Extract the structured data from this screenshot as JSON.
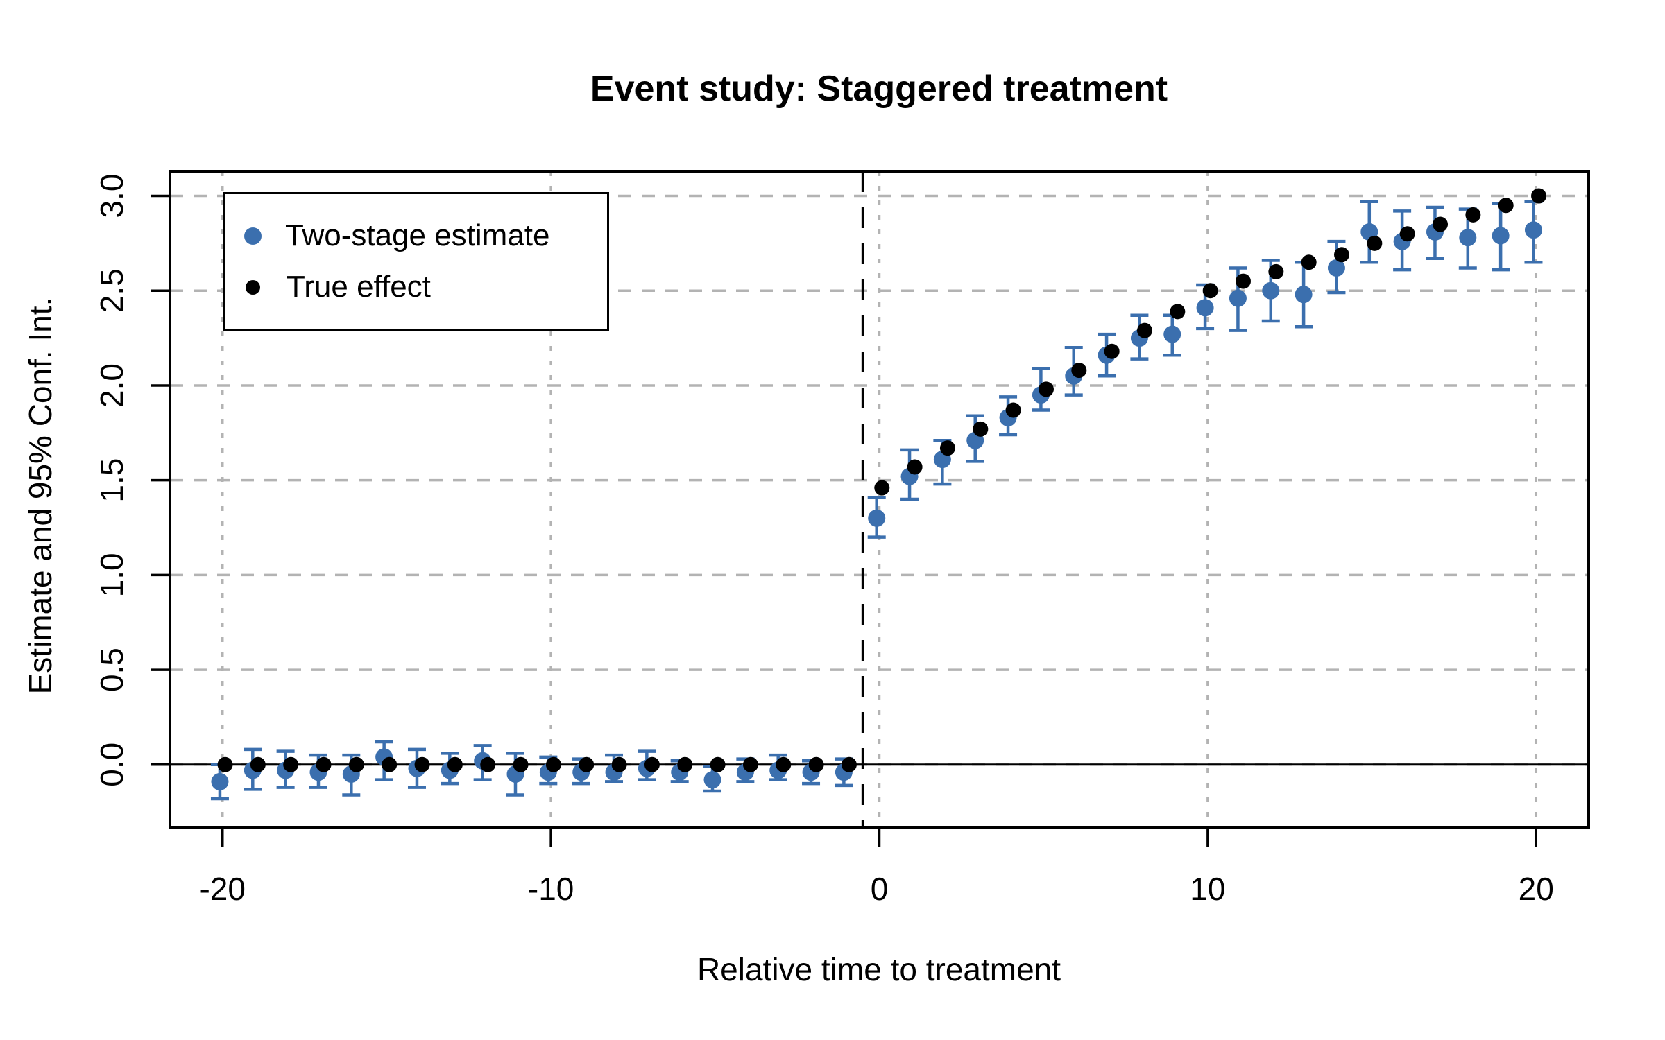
{
  "title": "Event study: Staggered treatment",
  "colors": {
    "two_stage": "#3B6FAE",
    "true_effect": "#000000",
    "grid": "#B3B3B3",
    "axis": "#000000",
    "background": "#FFFFFF"
  },
  "legend": {
    "items": [
      {
        "label": "Two-stage estimate",
        "color": "#3B6FAE",
        "marker": "filled-circle"
      },
      {
        "label": "True effect",
        "color": "#000000",
        "marker": "filled-circle"
      }
    ],
    "position": "top-left"
  },
  "chart_data": {
    "type": "scatter",
    "title": "Event study: Staggered treatment",
    "xlabel": "Relative time to treatment",
    "ylabel": "Estimate and 95% Conf. Int.",
    "xlim": [
      -21.6,
      21.6
    ],
    "ylim": [
      -0.33,
      3.13
    ],
    "x_ticks": [
      -20,
      -10,
      0,
      10,
      20
    ],
    "x_tick_labels": [
      "-20",
      "-10",
      "0",
      "10",
      "20"
    ],
    "y_ticks": [
      0.0,
      0.5,
      1.0,
      1.5,
      2.0,
      2.5,
      3.0
    ],
    "y_tick_labels": [
      "0.0",
      "0.5",
      "1.0",
      "1.5",
      "2.0",
      "2.5",
      "3.0"
    ],
    "grid": true,
    "reference_lines": {
      "vline_dashed_x": -0.5,
      "hline_solid_y": 0
    },
    "legend_position": "top-left",
    "x": [
      -20,
      -19,
      -18,
      -17,
      -16,
      -15,
      -14,
      -13,
      -12,
      -11,
      -10,
      -9,
      -8,
      -7,
      -6,
      -5,
      -4,
      -3,
      -2,
      -1,
      0,
      1,
      2,
      3,
      4,
      5,
      6,
      7,
      8,
      9,
      10,
      11,
      12,
      13,
      14,
      15,
      16,
      17,
      18,
      19,
      20
    ],
    "series": [
      {
        "name": "Two-stage estimate",
        "type": "scatter_with_errorbars",
        "color": "#3B6FAE",
        "estimates": [
          -0.09,
          -0.03,
          -0.03,
          -0.04,
          -0.05,
          0.04,
          -0.02,
          -0.03,
          0.02,
          -0.05,
          -0.04,
          -0.04,
          -0.04,
          -0.02,
          -0.04,
          -0.08,
          -0.04,
          -0.03,
          -0.04,
          -0.04,
          1.3,
          1.52,
          1.61,
          1.71,
          1.83,
          1.95,
          2.05,
          2.16,
          2.25,
          2.27,
          2.41,
          2.46,
          2.5,
          2.48,
          2.62,
          2.81,
          2.76,
          2.81,
          2.78,
          2.79,
          2.82
        ],
        "ci_low": [
          -0.18,
          -0.13,
          -0.12,
          -0.12,
          -0.16,
          -0.08,
          -0.12,
          -0.1,
          -0.08,
          -0.16,
          -0.1,
          -0.1,
          -0.09,
          -0.08,
          -0.09,
          -0.14,
          -0.09,
          -0.08,
          -0.1,
          -0.11,
          1.2,
          1.4,
          1.48,
          1.6,
          1.74,
          1.87,
          1.95,
          2.05,
          2.14,
          2.16,
          2.3,
          2.29,
          2.34,
          2.31,
          2.49,
          2.65,
          2.61,
          2.67,
          2.62,
          2.61,
          2.65
        ],
        "ci_high": [
          0.0,
          0.08,
          0.07,
          0.05,
          0.05,
          0.12,
          0.08,
          0.06,
          0.1,
          0.06,
          0.04,
          0.03,
          0.05,
          0.07,
          0.02,
          -0.01,
          0.03,
          0.05,
          0.02,
          0.03,
          1.41,
          1.66,
          1.71,
          1.84,
          1.94,
          2.09,
          2.2,
          2.27,
          2.37,
          2.37,
          2.53,
          2.62,
          2.66,
          2.65,
          2.76,
          2.97,
          2.92,
          2.94,
          2.93,
          2.96,
          2.97
        ]
      },
      {
        "name": "True effect",
        "type": "scatter",
        "color": "#000000",
        "values": [
          0,
          0,
          0,
          0,
          0,
          0,
          0,
          0,
          0,
          0,
          0,
          0,
          0,
          0,
          0,
          0,
          0,
          0,
          0,
          0,
          1.46,
          1.57,
          1.67,
          1.77,
          1.87,
          1.98,
          2.08,
          2.18,
          2.29,
          2.39,
          2.5,
          2.55,
          2.6,
          2.65,
          2.69,
          2.75,
          2.8,
          2.85,
          2.9,
          2.95,
          3.0
        ]
      }
    ]
  }
}
